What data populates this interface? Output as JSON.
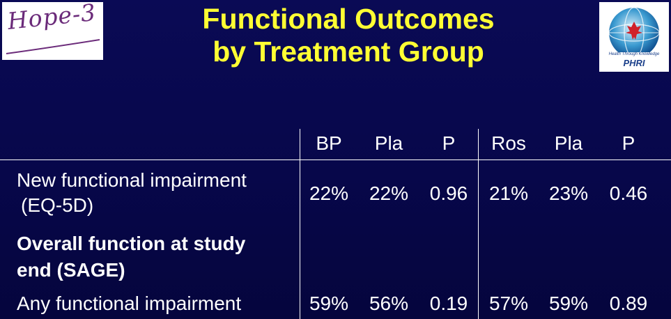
{
  "logos": {
    "left_text": "Hope-3",
    "right_tagline": "Health Through Knowledge",
    "right_brand": "PHRI"
  },
  "title": {
    "line1": "Functional Outcomes",
    "line2": "by Treatment Group"
  },
  "table": {
    "headers": [
      "BP",
      "Pla",
      "P",
      "Ros",
      "Pla",
      "P"
    ],
    "rows": [
      {
        "label_line1": "New functional impairment",
        "label_line2": "(EQ-5D)",
        "values": [
          "22%",
          "22%",
          "0.96",
          "21%",
          "23%",
          "0.46"
        ]
      },
      {
        "label_line1": "Overall function at study",
        "label_line2": "end (SAGE)",
        "values": []
      },
      {
        "label_line1": "Any functional impairment",
        "values": [
          "59%",
          "56%",
          "0.19",
          "57%",
          "59%",
          "0.89"
        ]
      }
    ]
  }
}
